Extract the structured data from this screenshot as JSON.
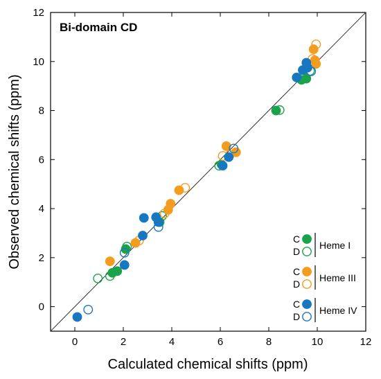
{
  "chart_data": {
    "type": "scatter",
    "panel_label": "Bi-domain CD",
    "xlabel": "Calculated chemical shifts (ppm)",
    "ylabel": "Observed chemical shifts (ppm)",
    "xlim": [
      -1,
      12
    ],
    "ylim": [
      -1,
      12
    ],
    "xticks": [
      "0",
      "2",
      "4",
      "6",
      "8",
      "10",
      "12"
    ],
    "yticks": [
      "0",
      "2",
      "4",
      "6",
      "8",
      "10",
      "12"
    ],
    "diagonal_line": true,
    "legend_position": "lower-right",
    "legend_markers": [
      "C",
      "D"
    ],
    "series": [
      {
        "name": "Heme I",
        "form": "C",
        "color": "#1aa34a",
        "filled": true,
        "points": [
          [
            1.55,
            1.38
          ],
          [
            1.75,
            1.45
          ],
          [
            2.1,
            2.35
          ],
          [
            3.5,
            3.45
          ],
          [
            6.05,
            5.8
          ],
          [
            8.3,
            8.0
          ],
          [
            9.35,
            9.25
          ],
          [
            9.55,
            9.3
          ]
        ]
      },
      {
        "name": "Heme I",
        "form": "D",
        "color": "#1aa34a",
        "filled": false,
        "points": [
          [
            0.95,
            1.15
          ],
          [
            1.45,
            1.25
          ],
          [
            2.15,
            2.45
          ],
          [
            3.6,
            3.7
          ],
          [
            5.95,
            5.75
          ],
          [
            8.45,
            8.02
          ],
          [
            9.45,
            9.35
          ],
          [
            9.7,
            9.62
          ]
        ]
      },
      {
        "name": "Heme III",
        "form": "C",
        "color": "#f39c1f",
        "filled": true,
        "points": [
          [
            1.45,
            1.85
          ],
          [
            2.5,
            2.6
          ],
          [
            3.85,
            3.95
          ],
          [
            3.95,
            4.2
          ],
          [
            4.3,
            4.75
          ],
          [
            6.25,
            6.55
          ],
          [
            6.65,
            6.3
          ],
          [
            9.85,
            10.5
          ],
          [
            9.9,
            10.05
          ],
          [
            9.95,
            9.9
          ]
        ]
      },
      {
        "name": "Heme III",
        "form": "D",
        "color": "#f39c1f",
        "filled": false,
        "points": [
          [
            2.65,
            2.7
          ],
          [
            3.7,
            3.8
          ],
          [
            4.55,
            4.85
          ],
          [
            6.1,
            6.15
          ],
          [
            6.4,
            6.2
          ],
          [
            9.95,
            10.7
          ],
          [
            9.8,
            10.1
          ]
        ]
      },
      {
        "name": "Heme IV",
        "form": "C",
        "color": "#1877c1",
        "filled": true,
        "points": [
          [
            0.1,
            -0.42
          ],
          [
            2.05,
            1.7
          ],
          [
            2.8,
            2.9
          ],
          [
            2.85,
            3.62
          ],
          [
            3.35,
            3.65
          ],
          [
            3.45,
            3.45
          ],
          [
            6.1,
            5.75
          ],
          [
            6.35,
            6.1
          ],
          [
            9.15,
            9.35
          ],
          [
            9.4,
            9.65
          ],
          [
            9.55,
            9.95
          ],
          [
            9.6,
            9.75
          ]
        ]
      },
      {
        "name": "Heme IV",
        "form": "D",
        "color": "#1877c1",
        "filled": false,
        "points": [
          [
            0.55,
            -0.12
          ],
          [
            2.05,
            2.2
          ],
          [
            3.45,
            3.25
          ],
          [
            6.55,
            6.45
          ],
          [
            9.75,
            9.6
          ]
        ]
      }
    ]
  }
}
